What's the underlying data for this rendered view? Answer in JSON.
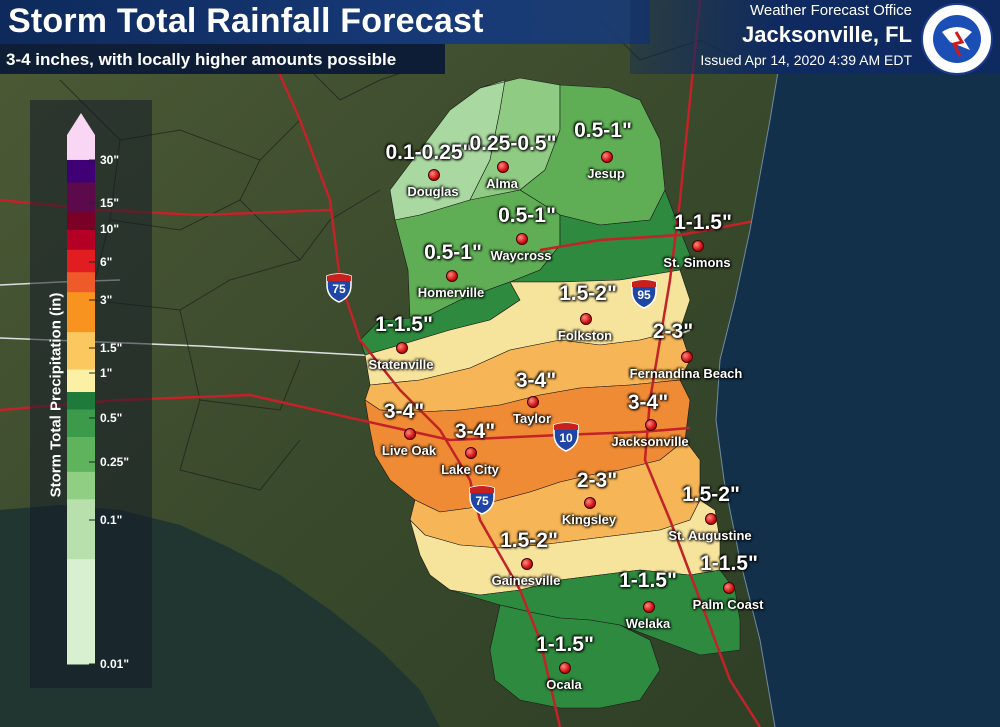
{
  "header": {
    "title": "Storm Total Rainfall Forecast",
    "subtitle": "3-4 inches, with locally higher amounts possible",
    "office_label": "Weather Forecast Office",
    "office_city": "Jacksonville, FL",
    "issued": "Issued Apr 14, 2020 4:39 AM EDT",
    "logo_text": "NATIONAL WEATHER SERVICE"
  },
  "legend": {
    "title": "Storm Total Precipitation (in)",
    "ticks": [
      "30\"",
      "15\"",
      "10\"",
      "6\"",
      "3\"",
      "1.5\"",
      "1\"",
      "0.5\"",
      "0.25\"",
      "0.1\"",
      "0.01\""
    ],
    "colors": [
      "#f9d6f3",
      "#3f0075",
      "#5c0a4c",
      "#7a0026",
      "#b40025",
      "#e21d22",
      "#ef5a2a",
      "#f7931e",
      "#fbc85f",
      "#fbf0a3",
      "#1e7a3a",
      "#3b9b4a",
      "#5fb35c",
      "#8fce83",
      "#b8e0ad",
      "#d8f0d0"
    ]
  },
  "zones": [
    {
      "label": "0.1-0.25\"",
      "color": "#a8d8a0"
    },
    {
      "label": "0.25-0.5\"",
      "color": "#8fca80"
    },
    {
      "label": "0.5-1\"",
      "color": "#5fae52"
    },
    {
      "label": "0.5-1\"",
      "color": "#5fae52"
    },
    {
      "label": "0.5-1\"",
      "color": "#5fae52"
    },
    {
      "label": "1-1.5\"",
      "color": "#2e8a3e"
    },
    {
      "label": "1-1.5\"",
      "color": "#2e8a3e"
    },
    {
      "label": "1.5-2\"",
      "color": "#f7e39a"
    },
    {
      "label": "2-3\"",
      "color": "#f7b656"
    },
    {
      "label": "3-4\"",
      "color": "#ef8a35"
    },
    {
      "label": "3-4\"",
      "color": "#ef8a35"
    },
    {
      "label": "3-4\"",
      "color": "#ef8a35"
    },
    {
      "label": "3-4\"",
      "color": "#ef8a35"
    },
    {
      "label": "2-3\"",
      "color": "#f7b656"
    },
    {
      "label": "1.5-2\"",
      "color": "#f7e39a"
    },
    {
      "label": "1.5-2\"",
      "color": "#f7e39a"
    },
    {
      "label": "1-1.5\"",
      "color": "#2e8a3e"
    },
    {
      "label": "1-1.5\"",
      "color": "#2e8a3e"
    },
    {
      "label": "1-1.5\"",
      "color": "#2e8a3e"
    }
  ],
  "cities": [
    "Douglas",
    "Alma",
    "Jesup",
    "Waycross",
    "Homerville",
    "St. Simons",
    "Folkston",
    "Statenville",
    "Fernandina Beach",
    "Taylor",
    "Live Oak",
    "Lake City",
    "Jacksonville",
    "Kingsley",
    "St. Augustine",
    "Gainesville",
    "Palm Coast",
    "Welaka",
    "Ocala"
  ],
  "highways": [
    "75",
    "95",
    "10",
    "75"
  ],
  "map_colors": {
    "land": "#3c4a2e",
    "water": "#12304a",
    "roads": "#c0242a",
    "borders": "#d9d9d9",
    "county_lines": "#222222"
  }
}
